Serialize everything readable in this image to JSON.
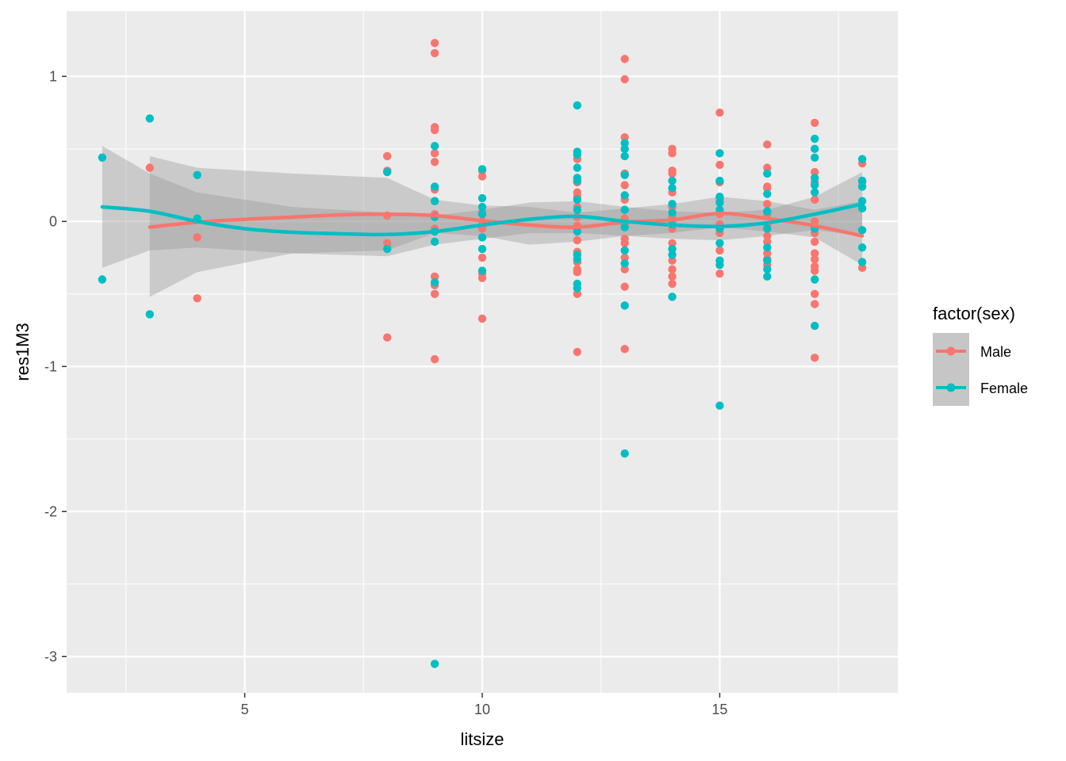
{
  "chart_data": {
    "type": "scatter",
    "xlabel": "litsize",
    "ylabel": "res1M3",
    "xlim": [
      1.25,
      18.75
    ],
    "ylim": [
      -3.25,
      1.45
    ],
    "x_ticks": [
      5,
      10,
      15
    ],
    "x_tick_labels": [
      "5",
      "10",
      "15"
    ],
    "y_ticks": [
      1,
      0,
      -1,
      -2,
      -3
    ],
    "y_tick_labels": [
      "1",
      "0",
      "-1",
      "-2",
      "-3"
    ],
    "grid": true,
    "legend": {
      "title": "factor(sex)",
      "placement": "right",
      "entries": [
        "Male",
        "Female"
      ]
    },
    "colors": {
      "Male": "#F8766D",
      "Female": "#00BFC4",
      "panel": "#EBEBEB",
      "grid": "#FFFFFF",
      "ribbon": "#999999"
    },
    "series": [
      {
        "name": "Male",
        "points": [
          [
            3,
            0.37
          ],
          [
            4,
            -0.11
          ],
          [
            4,
            -0.53
          ],
          [
            8,
            0.45
          ],
          [
            8,
            0.35
          ],
          [
            8,
            0.04
          ],
          [
            8,
            -0.15
          ],
          [
            8,
            -0.8
          ],
          [
            9,
            1.23
          ],
          [
            9,
            1.16
          ],
          [
            9,
            0.65
          ],
          [
            9,
            0.63
          ],
          [
            9,
            0.47
          ],
          [
            9,
            0.41
          ],
          [
            9,
            0.22
          ],
          [
            9,
            0.14
          ],
          [
            9,
            0.05
          ],
          [
            9,
            -0.05
          ],
          [
            9,
            -0.38
          ],
          [
            9,
            -0.44
          ],
          [
            9,
            -0.5
          ],
          [
            9,
            -0.95
          ],
          [
            10,
            0.35
          ],
          [
            10,
            0.31
          ],
          [
            10,
            0.06
          ],
          [
            10,
            0.0
          ],
          [
            10,
            -0.05
          ],
          [
            10,
            -0.25
          ],
          [
            10,
            -0.36
          ],
          [
            10,
            -0.39
          ],
          [
            10,
            -0.67
          ],
          [
            12,
            0.43
          ],
          [
            12,
            0.27
          ],
          [
            12,
            0.2
          ],
          [
            12,
            0.17
          ],
          [
            12,
            0.1
          ],
          [
            12,
            0.03
          ],
          [
            12,
            -0.03
          ],
          [
            12,
            -0.13
          ],
          [
            12,
            -0.21
          ],
          [
            12,
            -0.28
          ],
          [
            12,
            -0.33
          ],
          [
            12,
            -0.35
          ],
          [
            12,
            -0.5
          ],
          [
            12,
            -0.9
          ],
          [
            13,
            1.12
          ],
          [
            13,
            0.98
          ],
          [
            13,
            0.58
          ],
          [
            13,
            0.33
          ],
          [
            13,
            0.25
          ],
          [
            13,
            0.15
          ],
          [
            13,
            0.08
          ],
          [
            13,
            0.02
          ],
          [
            13,
            -0.02
          ],
          [
            13,
            -0.12
          ],
          [
            13,
            -0.15
          ],
          [
            13,
            -0.25
          ],
          [
            13,
            -0.33
          ],
          [
            13,
            -0.45
          ],
          [
            13,
            -0.88
          ],
          [
            14,
            0.5
          ],
          [
            14,
            0.47
          ],
          [
            14,
            0.35
          ],
          [
            14,
            0.33
          ],
          [
            14,
            0.2
          ],
          [
            14,
            0.1
          ],
          [
            14,
            0.03
          ],
          [
            14,
            -0.05
          ],
          [
            14,
            -0.15
          ],
          [
            14,
            -0.27
          ],
          [
            14,
            -0.33
          ],
          [
            14,
            -0.38
          ],
          [
            14,
            -0.43
          ],
          [
            15,
            0.75
          ],
          [
            15,
            0.39
          ],
          [
            15,
            0.27
          ],
          [
            15,
            0.15
          ],
          [
            15,
            0.05
          ],
          [
            15,
            -0.02
          ],
          [
            15,
            -0.08
          ],
          [
            15,
            -0.2
          ],
          [
            15,
            -0.36
          ],
          [
            16,
            0.53
          ],
          [
            16,
            0.37
          ],
          [
            16,
            0.24
          ],
          [
            16,
            0.23
          ],
          [
            16,
            0.12
          ],
          [
            16,
            0.05
          ],
          [
            16,
            -0.03
          ],
          [
            16,
            -0.1
          ],
          [
            16,
            -0.14
          ],
          [
            16,
            -0.22
          ],
          [
            16,
            -0.26
          ],
          [
            16,
            -0.3
          ],
          [
            17,
            0.68
          ],
          [
            17,
            0.34
          ],
          [
            17,
            0.27
          ],
          [
            17,
            0.15
          ],
          [
            17,
            0.0
          ],
          [
            17,
            -0.08
          ],
          [
            17,
            -0.14
          ],
          [
            17,
            -0.22
          ],
          [
            17,
            -0.26
          ],
          [
            17,
            -0.31
          ],
          [
            17,
            -0.34
          ],
          [
            17,
            -0.5
          ],
          [
            17,
            -0.57
          ],
          [
            17,
            -0.94
          ],
          [
            18,
            0.4
          ],
          [
            18,
            0.27
          ],
          [
            18,
            -0.32
          ]
        ],
        "smooth": [
          [
            3,
            -0.04
          ],
          [
            4,
            -0.005
          ],
          [
            5,
            0.015
          ],
          [
            6,
            0.03
          ],
          [
            7,
            0.045
          ],
          [
            8,
            0.05
          ],
          [
            9,
            0.04
          ],
          [
            10,
            0.005
          ],
          [
            11,
            -0.025
          ],
          [
            12,
            -0.04
          ],
          [
            13,
            -0.005
          ],
          [
            14,
            0.01
          ],
          [
            15,
            0.055
          ],
          [
            16,
            0.02
          ],
          [
            17,
            -0.03
          ],
          [
            18,
            -0.1
          ]
        ]
      },
      {
        "name": "Female",
        "points": [
          [
            2,
            0.44
          ],
          [
            2,
            -0.4
          ],
          [
            3,
            0.71
          ],
          [
            3,
            -0.64
          ],
          [
            4,
            0.32
          ],
          [
            4,
            0.02
          ],
          [
            8,
            0.34
          ],
          [
            8,
            -0.19
          ],
          [
            9,
            0.52
          ],
          [
            9,
            0.24
          ],
          [
            9,
            0.14
          ],
          [
            9,
            0.03
          ],
          [
            9,
            -0.07
          ],
          [
            9,
            -0.14
          ],
          [
            9,
            -0.42
          ],
          [
            9,
            -3.05
          ],
          [
            10,
            0.36
          ],
          [
            10,
            0.16
          ],
          [
            10,
            0.1
          ],
          [
            10,
            0.05
          ],
          [
            10,
            -0.11
          ],
          [
            10,
            -0.19
          ],
          [
            10,
            -0.34
          ],
          [
            12,
            0.8
          ],
          [
            12,
            0.48
          ],
          [
            12,
            0.46
          ],
          [
            12,
            0.37
          ],
          [
            12,
            0.3
          ],
          [
            12,
            0.28
          ],
          [
            12,
            0.15
          ],
          [
            12,
            0.08
          ],
          [
            12,
            -0.07
          ],
          [
            12,
            -0.23
          ],
          [
            12,
            -0.26
          ],
          [
            12,
            -0.43
          ],
          [
            12,
            -0.46
          ],
          [
            13,
            0.54
          ],
          [
            13,
            0.5
          ],
          [
            13,
            0.45
          ],
          [
            13,
            0.32
          ],
          [
            13,
            0.18
          ],
          [
            13,
            0.08
          ],
          [
            13,
            -0.04
          ],
          [
            13,
            -0.2
          ],
          [
            13,
            -0.29
          ],
          [
            13,
            -0.58
          ],
          [
            13,
            -1.6
          ],
          [
            14,
            0.28
          ],
          [
            14,
            0.23
          ],
          [
            14,
            0.12
          ],
          [
            14,
            0.06
          ],
          [
            14,
            -0.02
          ],
          [
            14,
            -0.19
          ],
          [
            14,
            -0.23
          ],
          [
            14,
            -0.52
          ],
          [
            15,
            0.47
          ],
          [
            15,
            0.28
          ],
          [
            15,
            0.17
          ],
          [
            15,
            0.13
          ],
          [
            15,
            0.08
          ],
          [
            15,
            -0.05
          ],
          [
            15,
            -0.15
          ],
          [
            15,
            -0.27
          ],
          [
            15,
            -0.3
          ],
          [
            15,
            -1.27
          ],
          [
            16,
            0.33
          ],
          [
            16,
            0.19
          ],
          [
            16,
            0.07
          ],
          [
            16,
            -0.05
          ],
          [
            16,
            -0.18
          ],
          [
            16,
            -0.27
          ],
          [
            16,
            -0.33
          ],
          [
            16,
            -0.38
          ],
          [
            17,
            0.57
          ],
          [
            17,
            0.5
          ],
          [
            17,
            0.44
          ],
          [
            17,
            0.3
          ],
          [
            17,
            0.25
          ],
          [
            17,
            0.2
          ],
          [
            17,
            -0.05
          ],
          [
            17,
            -0.4
          ],
          [
            17,
            -0.72
          ],
          [
            18,
            0.43
          ],
          [
            18,
            0.28
          ],
          [
            18,
            0.24
          ],
          [
            18,
            0.14
          ],
          [
            18,
            0.09
          ],
          [
            18,
            -0.06
          ],
          [
            18,
            -0.18
          ],
          [
            18,
            -0.28
          ]
        ],
        "smooth": [
          [
            2,
            0.1
          ],
          [
            3,
            0.07
          ],
          [
            4,
            0.0
          ],
          [
            5,
            -0.05
          ],
          [
            6,
            -0.075
          ],
          [
            7,
            -0.085
          ],
          [
            8,
            -0.09
          ],
          [
            9,
            -0.07
          ],
          [
            10,
            -0.025
          ],
          [
            11,
            0.015
          ],
          [
            12,
            0.035
          ],
          [
            13,
            0.0
          ],
          [
            14,
            -0.025
          ],
          [
            15,
            -0.035
          ],
          [
            16,
            -0.01
          ],
          [
            17,
            0.05
          ],
          [
            18,
            0.12
          ]
        ]
      }
    ],
    "ribbons": [
      {
        "name": "Male",
        "band": [
          [
            3,
            -0.52,
            0.45
          ],
          [
            4,
            -0.35,
            0.37
          ],
          [
            6,
            -0.22,
            0.33
          ],
          [
            8,
            -0.2,
            0.3
          ],
          [
            9,
            -0.08,
            0.15
          ],
          [
            10,
            -0.1,
            0.11
          ],
          [
            11,
            -0.16,
            0.1
          ],
          [
            12,
            -0.14,
            0.06
          ],
          [
            13,
            -0.1,
            0.09
          ],
          [
            14,
            -0.08,
            0.12
          ],
          [
            15,
            -0.04,
            0.17
          ],
          [
            16,
            -0.07,
            0.14
          ],
          [
            17,
            -0.11,
            0.08
          ],
          [
            18,
            -0.3,
            0.14
          ]
        ]
      },
      {
        "name": "Female",
        "band": [
          [
            2,
            -0.32,
            0.52
          ],
          [
            3,
            -0.2,
            0.33
          ],
          [
            4,
            -0.18,
            0.2
          ],
          [
            6,
            -0.22,
            0.1
          ],
          [
            8,
            -0.24,
            0.06
          ],
          [
            9,
            -0.16,
            0.04
          ],
          [
            10,
            -0.12,
            0.08
          ],
          [
            11,
            -0.08,
            0.13
          ],
          [
            12,
            -0.08,
            0.14
          ],
          [
            13,
            -0.1,
            0.1
          ],
          [
            14,
            -0.12,
            0.07
          ],
          [
            15,
            -0.13,
            0.06
          ],
          [
            16,
            -0.1,
            0.08
          ],
          [
            17,
            -0.06,
            0.17
          ],
          [
            18,
            -0.1,
            0.34
          ]
        ]
      }
    ]
  }
}
